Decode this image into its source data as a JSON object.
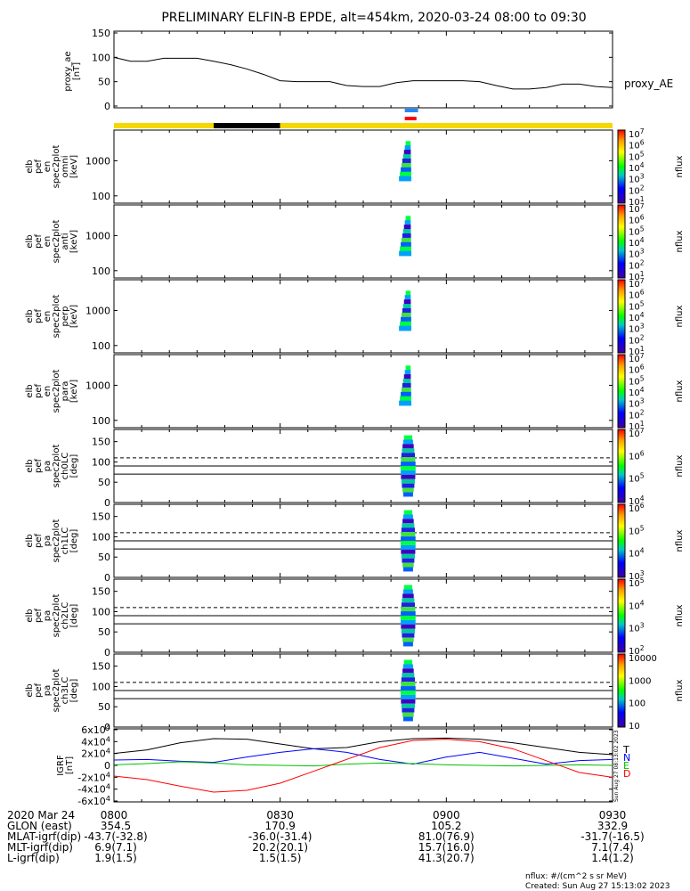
{
  "title": "PRELIMINARY ELFIN-B EPDE, alt=454km, 2020-03-24 08:00 to 09:30",
  "x_ticks": [
    "0800",
    "0830",
    "0900",
    "0930"
  ],
  "ephemeris": {
    "labels": [
      "2020 Mar 24",
      "GLON (east)",
      "MLAT-igrf(dip)",
      "MLT-igrf(dip)",
      "L-igrf(dip)"
    ],
    "columns": [
      [
        "354.5",
        "-43.7(-32.8)",
        "6.9(7.1)",
        "1.9(1.5)"
      ],
      [
        "170.9",
        "-36.0(-31.4)",
        "20.2(20.1)",
        "1.5(1.5)"
      ],
      [
        "105.2",
        "81.0(76.9)",
        "15.7(16.0)",
        "41.3(20.7)"
      ],
      [
        "332.9",
        "-31.7(-16.5)",
        "7.1(7.4)",
        "1.4(1.2)"
      ]
    ]
  },
  "footer": {
    "units": "nflux: #/(cm^2 s sr MeV)",
    "created": "Created: Sun Aug 27 15:13:02 2023",
    "stamp": "Sun Aug 27 08:13:02 2023"
  },
  "colors": {
    "black": "#000000",
    "blue": "#0000ff",
    "green": "#00c000",
    "red": "#ff0000",
    "yellow": "#f5d800"
  },
  "chart_data": [
    {
      "type": "line",
      "panel": "proxy_ae",
      "ylabel": [
        "proxy_ae",
        "[nT]"
      ],
      "yticks": [
        "150",
        "100",
        "50",
        "0"
      ],
      "ylim": [
        0,
        150
      ],
      "legend": "proxy_AE",
      "x_hours": [
        8.0,
        8.05,
        8.1,
        8.15,
        8.2,
        8.25,
        8.3,
        8.35,
        8.4,
        8.45,
        8.5,
        8.55,
        8.6,
        8.65,
        8.7,
        8.75,
        8.8,
        8.85,
        8.9,
        8.95,
        9.0,
        9.05,
        9.1,
        9.15,
        9.2,
        9.25,
        9.3,
        9.35,
        9.4,
        9.45,
        9.5
      ],
      "values": [
        100,
        92,
        92,
        98,
        98,
        98,
        92,
        85,
        76,
        65,
        52,
        50,
        50,
        50,
        42,
        40,
        40,
        48,
        52,
        52,
        52,
        52,
        50,
        42,
        35,
        35,
        38,
        45,
        45,
        40,
        38
      ]
    },
    {
      "type": "bar",
      "panel": "orbit_bars",
      "bars": [
        {
          "color": "#f5d800",
          "from_hour": 8.0,
          "to_hour": 8.3
        },
        {
          "color": "#000000",
          "from_hour": 8.3,
          "to_hour": 8.5
        },
        {
          "color": "#f5d800",
          "from_hour": 8.5,
          "to_hour": 9.5
        }
      ],
      "markers": [
        {
          "color": "#1e88ff",
          "from_hour": 8.875,
          "to_hour": 8.915
        },
        {
          "color": "#ff0000",
          "from_hour": 8.875,
          "to_hour": 8.91
        }
      ]
    },
    {
      "type": "heatmap",
      "panel": "en_omni",
      "ylabel": [
        "elb",
        "pef",
        "en",
        "spec2plot",
        "omni",
        "[keV]"
      ],
      "yticks": [
        "1000",
        "100"
      ],
      "colorbar": [
        "10^7",
        "10^6",
        "10^5",
        "10^4",
        "10^3",
        "10^2",
        "10^1"
      ],
      "colorbar_label": "nflux"
    },
    {
      "type": "heatmap",
      "panel": "en_anti",
      "ylabel": [
        "elb",
        "pef",
        "en",
        "spec2plot",
        "anti",
        "[keV]"
      ],
      "yticks": [
        "1000",
        "100"
      ],
      "colorbar": [
        "10^7",
        "10^6",
        "10^5",
        "10^4",
        "10^3",
        "10^2",
        "10^1"
      ],
      "colorbar_label": "nflux"
    },
    {
      "type": "heatmap",
      "panel": "en_perp",
      "ylabel": [
        "elb",
        "pef",
        "en",
        "spec2plot",
        "perp",
        "[keV]"
      ],
      "yticks": [
        "1000",
        "100"
      ],
      "colorbar": [
        "10^7",
        "10^6",
        "10^5",
        "10^4",
        "10^3",
        "10^2",
        "10^1"
      ],
      "colorbar_label": "nflux"
    },
    {
      "type": "heatmap",
      "panel": "en_para",
      "ylabel": [
        "elb",
        "pef",
        "en",
        "spec2plot",
        "para",
        "[keV]"
      ],
      "yticks": [
        "1000",
        "100"
      ],
      "colorbar": [
        "10^7",
        "10^6",
        "10^5",
        "10^4",
        "10^3",
        "10^2",
        "10^1"
      ],
      "colorbar_label": "nflux"
    },
    {
      "type": "heatmap",
      "panel": "pa_ch0",
      "ylabel": [
        "elb",
        "pef",
        "pa",
        "spec2plot",
        "ch0LC",
        "[deg]"
      ],
      "yticks": [
        "150",
        "100",
        "50",
        "0"
      ],
      "colorbar": [
        "10^7",
        "10^6",
        "10^5",
        "10^4"
      ],
      "colorbar_label": "nflux"
    },
    {
      "type": "heatmap",
      "panel": "pa_ch1",
      "ylabel": [
        "elb",
        "pef",
        "pa",
        "spec2plot",
        "ch1LC",
        "[deg]"
      ],
      "yticks": [
        "150",
        "100",
        "50",
        "0"
      ],
      "colorbar": [
        "10^6",
        "10^5",
        "10^4",
        "10^3"
      ],
      "colorbar_label": "nflux"
    },
    {
      "type": "heatmap",
      "panel": "pa_ch2",
      "ylabel": [
        "elb",
        "pef",
        "pa",
        "spec2plot",
        "ch2LC",
        "[deg]"
      ],
      "yticks": [
        "150",
        "100",
        "50",
        "0"
      ],
      "colorbar": [
        "10^5",
        "10^4",
        "10^3",
        "10^2"
      ],
      "colorbar_label": "nflux"
    },
    {
      "type": "heatmap",
      "panel": "pa_ch3",
      "ylabel": [
        "elb",
        "pef",
        "pa",
        "spec2plot",
        "ch3LC",
        "[deg]"
      ],
      "yticks": [
        "150",
        "100",
        "50",
        "0"
      ],
      "colorbar": [
        "10000",
        "1000",
        "100",
        "10"
      ],
      "colorbar_label": "nflux"
    },
    {
      "type": "line",
      "panel": "igrf",
      "ylabel": [
        "IGRF",
        "[nT]"
      ],
      "yticks": [
        "6x10^4",
        "4x10^4",
        "2x10^4",
        "0",
        "-2x10^4",
        "-4x10^4",
        "-6x10^4"
      ],
      "ylim": [
        -60000,
        60000
      ],
      "x_hours": [
        8.0,
        8.1,
        8.2,
        8.3,
        8.4,
        8.5,
        8.6,
        8.7,
        8.8,
        8.9,
        9.0,
        9.1,
        9.2,
        9.3,
        9.4,
        9.5
      ],
      "series": [
        {
          "name": "T",
          "color": "#000000",
          "values": [
            20000,
            26000,
            38000,
            45000,
            44000,
            36000,
            28000,
            30000,
            40000,
            45000,
            46000,
            44000,
            38000,
            30000,
            22000,
            18000
          ]
        },
        {
          "name": "N",
          "color": "#0000ff",
          "values": [
            9000,
            10000,
            7000,
            5000,
            14000,
            22000,
            28000,
            22000,
            10000,
            2000,
            14000,
            22000,
            12000,
            2000,
            8000,
            10000
          ]
        },
        {
          "name": "E",
          "color": "#00c000",
          "values": [
            1000,
            3000,
            6000,
            4000,
            1000,
            0,
            -1000,
            2000,
            4000,
            3000,
            1000,
            0,
            -1000,
            0,
            1000,
            0
          ]
        },
        {
          "name": "D",
          "color": "#ff0000",
          "values": [
            -18000,
            -24000,
            -35000,
            -45000,
            -42000,
            -30000,
            -10000,
            10000,
            30000,
            42000,
            44000,
            40000,
            28000,
            8000,
            -12000,
            -20000
          ]
        }
      ]
    }
  ]
}
